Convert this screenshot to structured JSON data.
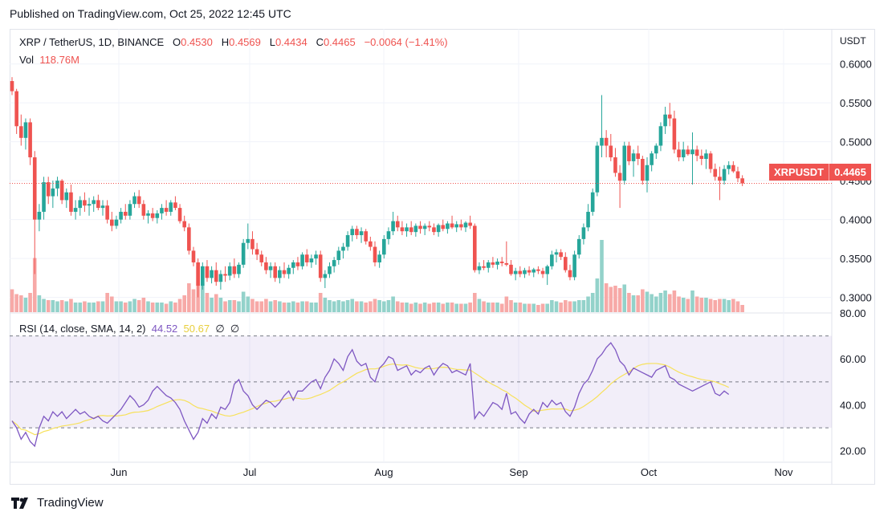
{
  "published": "Published on TradingView.com, Oct 25, 2022 12:45 UTC",
  "header": {
    "symbol": "XRP / TetherUS, 1D, BINANCE",
    "o_label": "O",
    "o": "0.4530",
    "h_label": "H",
    "h": "0.4569",
    "l_label": "L",
    "l": "0.4434",
    "c_label": "C",
    "c": "0.4465",
    "change": "−0.0064 (−1.41%)",
    "vol_label": "Vol",
    "vol": "118.76M"
  },
  "currency": "USDT",
  "price_tag": {
    "symbol": "XRPUSDT",
    "price": "0.4465"
  },
  "rsi_legend": {
    "label": "RSI (14, close, SMA, 14, 2)",
    "rsi": "44.52",
    "sma": "50.67",
    "x1": "∅",
    "x2": "∅"
  },
  "footer": {
    "brand": "TradingView"
  },
  "colors": {
    "up": "#26a69a",
    "down": "#ef5350",
    "rsi": "#7e57c2",
    "rsi_sma": "#f7e15b",
    "vol_up": "#93d2ca",
    "vol_down": "#f7a9a7"
  },
  "chart_data": [
    {
      "type": "candlestick",
      "x_ticks": [
        "Jun",
        "Jul",
        "Aug",
        "Sep",
        "Oct",
        "Nov"
      ],
      "y_ticks": [
        "0.3000",
        "0.3500",
        "0.4000",
        "0.4500",
        "0.5000",
        "0.5500",
        "0.6000"
      ],
      "ylim": [
        0.28,
        0.61
      ],
      "last_price": 0.4465,
      "ohlc": [
        [
          0.578,
          0.583,
          0.56,
          0.565
        ],
        [
          0.565,
          0.568,
          0.51,
          0.52
        ],
        [
          0.52,
          0.535,
          0.495,
          0.505
        ],
        [
          0.505,
          0.53,
          0.49,
          0.525
        ],
        [
          0.525,
          0.53,
          0.47,
          0.48
        ],
        [
          0.48,
          0.488,
          0.33,
          0.4
        ],
        [
          0.4,
          0.42,
          0.385,
          0.41
        ],
        [
          0.41,
          0.455,
          0.4,
          0.448
        ],
        [
          0.448,
          0.455,
          0.42,
          0.43
        ],
        [
          0.43,
          0.45,
          0.415,
          0.44
        ],
        [
          0.44,
          0.455,
          0.43,
          0.45
        ],
        [
          0.45,
          0.452,
          0.42,
          0.425
        ],
        [
          0.425,
          0.44,
          0.415,
          0.435
        ],
        [
          0.435,
          0.445,
          0.405,
          0.41
        ],
        [
          0.41,
          0.425,
          0.4,
          0.415
        ],
        [
          0.415,
          0.43,
          0.405,
          0.425
        ],
        [
          0.425,
          0.435,
          0.41,
          0.418
        ],
        [
          0.418,
          0.428,
          0.405,
          0.42
        ],
        [
          0.42,
          0.43,
          0.41,
          0.425
        ],
        [
          0.425,
          0.432,
          0.412,
          0.415
        ],
        [
          0.415,
          0.425,
          0.405,
          0.418
        ],
        [
          0.418,
          0.425,
          0.395,
          0.4
        ],
        [
          0.4,
          0.41,
          0.385,
          0.392
        ],
        [
          0.392,
          0.405,
          0.388,
          0.4
        ],
        [
          0.4,
          0.415,
          0.395,
          0.41
        ],
        [
          0.41,
          0.42,
          0.4,
          0.405
        ],
        [
          0.405,
          0.425,
          0.4,
          0.42
        ],
        [
          0.42,
          0.435,
          0.415,
          0.43
        ],
        [
          0.43,
          0.438,
          0.415,
          0.42
        ],
        [
          0.42,
          0.425,
          0.4,
          0.405
        ],
        [
          0.405,
          0.412,
          0.395,
          0.408
        ],
        [
          0.408,
          0.415,
          0.398,
          0.402
        ],
        [
          0.402,
          0.412,
          0.395,
          0.408
        ],
        [
          0.408,
          0.42,
          0.4,
          0.415
        ],
        [
          0.415,
          0.425,
          0.405,
          0.41
        ],
        [
          0.41,
          0.425,
          0.405,
          0.422
        ],
        [
          0.422,
          0.43,
          0.412,
          0.415
        ],
        [
          0.415,
          0.42,
          0.395,
          0.398
        ],
        [
          0.398,
          0.405,
          0.385,
          0.39
        ],
        [
          0.39,
          0.395,
          0.355,
          0.36
        ],
        [
          0.36,
          0.365,
          0.34,
          0.345
        ],
        [
          0.345,
          0.35,
          0.3,
          0.315
        ],
        [
          0.315,
          0.345,
          0.31,
          0.34
        ],
        [
          0.34,
          0.348,
          0.32,
          0.325
        ],
        [
          0.325,
          0.34,
          0.318,
          0.335
        ],
        [
          0.335,
          0.345,
          0.315,
          0.32
        ],
        [
          0.32,
          0.335,
          0.31,
          0.33
        ],
        [
          0.33,
          0.34,
          0.32,
          0.328
        ],
        [
          0.328,
          0.345,
          0.322,
          0.34
        ],
        [
          0.34,
          0.35,
          0.325,
          0.33
        ],
        [
          0.33,
          0.345,
          0.325,
          0.342
        ],
        [
          0.342,
          0.375,
          0.338,
          0.37
        ],
        [
          0.37,
          0.395,
          0.362,
          0.375
        ],
        [
          0.375,
          0.385,
          0.355,
          0.362
        ],
        [
          0.362,
          0.37,
          0.348,
          0.355
        ],
        [
          0.355,
          0.36,
          0.34,
          0.345
        ],
        [
          0.345,
          0.352,
          0.33,
          0.335
        ],
        [
          0.335,
          0.345,
          0.325,
          0.34
        ],
        [
          0.34,
          0.345,
          0.32,
          0.325
        ],
        [
          0.325,
          0.34,
          0.318,
          0.335
        ],
        [
          0.335,
          0.345,
          0.325,
          0.33
        ],
        [
          0.33,
          0.342,
          0.324,
          0.338
        ],
        [
          0.338,
          0.348,
          0.33,
          0.345
        ],
        [
          0.345,
          0.352,
          0.335,
          0.34
        ],
        [
          0.34,
          0.358,
          0.336,
          0.355
        ],
        [
          0.355,
          0.362,
          0.34,
          0.345
        ],
        [
          0.345,
          0.355,
          0.338,
          0.35
        ],
        [
          0.35,
          0.36,
          0.342,
          0.355
        ],
        [
          0.355,
          0.36,
          0.32,
          0.325
        ],
        [
          0.325,
          0.335,
          0.312,
          0.33
        ],
        [
          0.33,
          0.345,
          0.325,
          0.34
        ],
        [
          0.34,
          0.352,
          0.332,
          0.348
        ],
        [
          0.348,
          0.365,
          0.342,
          0.36
        ],
        [
          0.36,
          0.37,
          0.35,
          0.365
        ],
        [
          0.365,
          0.385,
          0.36,
          0.38
        ],
        [
          0.38,
          0.392,
          0.372,
          0.388
        ],
        [
          0.388,
          0.392,
          0.375,
          0.38
        ],
        [
          0.38,
          0.39,
          0.37,
          0.385
        ],
        [
          0.385,
          0.388,
          0.368,
          0.372
        ],
        [
          0.372,
          0.378,
          0.36,
          0.365
        ],
        [
          0.365,
          0.372,
          0.34,
          0.345
        ],
        [
          0.345,
          0.36,
          0.338,
          0.355
        ],
        [
          0.355,
          0.38,
          0.35,
          0.375
        ],
        [
          0.375,
          0.39,
          0.368,
          0.385
        ],
        [
          0.385,
          0.41,
          0.38,
          0.398
        ],
        [
          0.398,
          0.405,
          0.385,
          0.39
        ],
        [
          0.39,
          0.398,
          0.38,
          0.385
        ],
        [
          0.385,
          0.395,
          0.378,
          0.39
        ],
        [
          0.39,
          0.398,
          0.38,
          0.384
        ],
        [
          0.384,
          0.395,
          0.378,
          0.392
        ],
        [
          0.392,
          0.398,
          0.382,
          0.388
        ],
        [
          0.388,
          0.395,
          0.38,
          0.392
        ],
        [
          0.392,
          0.398,
          0.385,
          0.39
        ],
        [
          0.39,
          0.395,
          0.38,
          0.384
        ],
        [
          0.384,
          0.395,
          0.378,
          0.393
        ],
        [
          0.393,
          0.4,
          0.385,
          0.388
        ],
        [
          0.388,
          0.398,
          0.382,
          0.395
        ],
        [
          0.395,
          0.405,
          0.388,
          0.39
        ],
        [
          0.39,
          0.398,
          0.384,
          0.394
        ],
        [
          0.394,
          0.4,
          0.386,
          0.39
        ],
        [
          0.39,
          0.398,
          0.384,
          0.396
        ],
        [
          0.396,
          0.405,
          0.388,
          0.392
        ],
        [
          0.392,
          0.395,
          0.332,
          0.335
        ],
        [
          0.335,
          0.345,
          0.33,
          0.34
        ],
        [
          0.34,
          0.348,
          0.335,
          0.338
        ],
        [
          0.338,
          0.348,
          0.332,
          0.345
        ],
        [
          0.345,
          0.352,
          0.338,
          0.342
        ],
        [
          0.342,
          0.35,
          0.336,
          0.346
        ],
        [
          0.346,
          0.352,
          0.34,
          0.344
        ],
        [
          0.344,
          0.372,
          0.34,
          0.342
        ],
        [
          0.342,
          0.348,
          0.328,
          0.33
        ],
        [
          0.33,
          0.338,
          0.322,
          0.334
        ],
        [
          0.334,
          0.34,
          0.326,
          0.33
        ],
        [
          0.33,
          0.338,
          0.325,
          0.335
        ],
        [
          0.335,
          0.34,
          0.328,
          0.332
        ],
        [
          0.332,
          0.338,
          0.326,
          0.336
        ],
        [
          0.336,
          0.34,
          0.33,
          0.334
        ],
        [
          0.334,
          0.338,
          0.325,
          0.33
        ],
        [
          0.33,
          0.342,
          0.316,
          0.34
        ],
        [
          0.34,
          0.36,
          0.336,
          0.355
        ],
        [
          0.355,
          0.362,
          0.345,
          0.358
        ],
        [
          0.358,
          0.362,
          0.348,
          0.352
        ],
        [
          0.352,
          0.358,
          0.332,
          0.335
        ],
        [
          0.335,
          0.342,
          0.322,
          0.326
        ],
        [
          0.326,
          0.36,
          0.322,
          0.355
        ],
        [
          0.355,
          0.38,
          0.35,
          0.375
        ],
        [
          0.375,
          0.395,
          0.368,
          0.39
        ],
        [
          0.39,
          0.42,
          0.385,
          0.41
        ],
        [
          0.41,
          0.44,
          0.405,
          0.435
        ],
        [
          0.435,
          0.5,
          0.43,
          0.495
        ],
        [
          0.495,
          0.56,
          0.48,
          0.505
        ],
        [
          0.505,
          0.515,
          0.48,
          0.495
        ],
        [
          0.495,
          0.51,
          0.475,
          0.48
        ],
        [
          0.48,
          0.492,
          0.455,
          0.46
        ],
        [
          0.46,
          0.47,
          0.415,
          0.45
        ],
        [
          0.45,
          0.5,
          0.445,
          0.495
        ],
        [
          0.495,
          0.5,
          0.47,
          0.475
        ],
        [
          0.475,
          0.49,
          0.455,
          0.485
        ],
        [
          0.485,
          0.495,
          0.47,
          0.478
        ],
        [
          0.478,
          0.482,
          0.445,
          0.45
        ],
        [
          0.45,
          0.48,
          0.435,
          0.47
        ],
        [
          0.47,
          0.488,
          0.462,
          0.485
        ],
        [
          0.485,
          0.498,
          0.478,
          0.495
        ],
        [
          0.495,
          0.525,
          0.488,
          0.52
        ],
        [
          0.52,
          0.545,
          0.51,
          0.535
        ],
        [
          0.535,
          0.55,
          0.52,
          0.53
        ],
        [
          0.53,
          0.54,
          0.485,
          0.49
        ],
        [
          0.49,
          0.5,
          0.475,
          0.48
        ],
        [
          0.48,
          0.5,
          0.475,
          0.49
        ],
        [
          0.49,
          0.495,
          0.482,
          0.484
        ],
        [
          0.484,
          0.512,
          0.445,
          0.49
        ],
        [
          0.49,
          0.495,
          0.475,
          0.482
        ],
        [
          0.482,
          0.49,
          0.47,
          0.478
        ],
        [
          0.478,
          0.49,
          0.465,
          0.485
        ],
        [
          0.485,
          0.488,
          0.46,
          0.465
        ],
        [
          0.465,
          0.472,
          0.45,
          0.455
        ],
        [
          0.455,
          0.468,
          0.425,
          0.45
        ],
        [
          0.45,
          0.47,
          0.445,
          0.465
        ],
        [
          0.465,
          0.475,
          0.458,
          0.47
        ],
        [
          0.47,
          0.475,
          0.46,
          0.462
        ],
        [
          0.462,
          0.468,
          0.448,
          0.453
        ],
        [
          0.453,
          0.457,
          0.443,
          0.4465
        ]
      ],
      "volume": [
        1.9,
        1.5,
        1.4,
        1.2,
        1.6,
        4.5,
        1.4,
        1.1,
        1.0,
        1.0,
        0.9,
        1.0,
        0.9,
        1.1,
        0.8,
        0.8,
        0.9,
        0.8,
        0.8,
        0.9,
        0.9,
        1.6,
        1.3,
        0.9,
        0.9,
        0.8,
        0.9,
        1.1,
        1.0,
        1.2,
        0.9,
        0.8,
        0.8,
        0.8,
        0.7,
        0.9,
        0.8,
        1.1,
        1.4,
        2.4,
        1.9,
        3.8,
        2.4,
        1.6,
        1.2,
        1.5,
        1.2,
        0.9,
        1.0,
        1.0,
        0.9,
        1.7,
        1.3,
        1.1,
        0.9,
        0.9,
        1.1,
        0.9,
        1.0,
        0.9,
        0.8,
        0.8,
        0.9,
        0.8,
        0.9,
        0.9,
        0.8,
        0.8,
        1.6,
        1.2,
        1.0,
        0.9,
        1.0,
        0.9,
        1.0,
        1.1,
        0.9,
        0.9,
        0.8,
        0.9,
        1.1,
        1.0,
        0.9,
        1.0,
        1.3,
        0.9,
        0.8,
        0.8,
        0.7,
        0.8,
        0.7,
        0.8,
        0.7,
        0.8,
        0.8,
        0.7,
        0.8,
        0.8,
        0.7,
        0.7,
        0.7,
        0.8,
        1.6,
        1.1,
        0.9,
        0.8,
        0.8,
        0.8,
        0.7,
        1.3,
        1.0,
        0.8,
        0.8,
        0.7,
        0.7,
        0.7,
        0.6,
        0.7,
        0.7,
        1.0,
        0.9,
        0.8,
        1.0,
        0.9,
        0.9,
        1.0,
        1.0,
        1.3,
        1.6,
        2.8,
        6.0,
        2.4,
        2.1,
        2.2,
        2.0,
        2.3,
        1.6,
        1.4,
        1.4,
        1.9,
        1.7,
        1.5,
        1.3,
        1.6,
        1.8,
        1.5,
        1.8,
        1.3,
        1.2,
        1.1,
        1.8,
        1.3,
        1.2,
        1.2,
        1.1,
        1.0,
        1.1,
        1.1,
        1.0,
        1.1,
        0.9,
        0.6
      ],
      "rsi": [
        33,
        30,
        25,
        28,
        24,
        22,
        30,
        35,
        33,
        37,
        35,
        37,
        34,
        36,
        38,
        36,
        37,
        35,
        34,
        35,
        33,
        32,
        34,
        36,
        38,
        41,
        44,
        42,
        39,
        40,
        42,
        46,
        48,
        46,
        44,
        43,
        41,
        38,
        33,
        29,
        25,
        28,
        34,
        32,
        36,
        34,
        39,
        38,
        41,
        49,
        51,
        46,
        44,
        40,
        38,
        40,
        42,
        41,
        39,
        41,
        44,
        46,
        42,
        46,
        46,
        48,
        50,
        51,
        47,
        52,
        55,
        60,
        58,
        55,
        61,
        64,
        59,
        57,
        58,
        52,
        50,
        56,
        58,
        61,
        60,
        55,
        56,
        57,
        53,
        55,
        54,
        56,
        57,
        53,
        56,
        58,
        57,
        54,
        55,
        54,
        53,
        58,
        34,
        37,
        35,
        38,
        41,
        40,
        38,
        45,
        36,
        37,
        34,
        32,
        36,
        38,
        36,
        41,
        39,
        42,
        40,
        41,
        37,
        35,
        39,
        45,
        49,
        51,
        55,
        60,
        62,
        65,
        67,
        64,
        59,
        57,
        53,
        56,
        55,
        54,
        53,
        52,
        55,
        56,
        57,
        52,
        51,
        49,
        48,
        47,
        46,
        47,
        48,
        49,
        50,
        45,
        44,
        46,
        44.52
      ],
      "rsi_ylim": [
        15,
        80
      ],
      "rsi_ticks": [
        "20.00",
        "40.00",
        "60.00",
        "80.00"
      ],
      "rsi_bands": [
        30,
        50,
        70
      ]
    }
  ]
}
